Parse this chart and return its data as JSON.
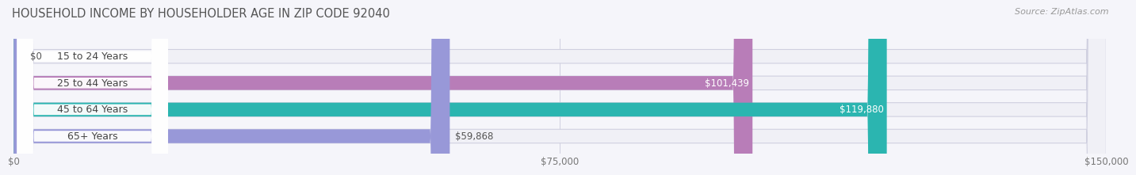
{
  "title": "HOUSEHOLD INCOME BY HOUSEHOLDER AGE IN ZIP CODE 92040",
  "source": "Source: ZipAtlas.com",
  "categories": [
    "15 to 24 Years",
    "25 to 44 Years",
    "45 to 64 Years",
    "65+ Years"
  ],
  "values": [
    0,
    101439,
    119880,
    59868
  ],
  "value_labels": [
    "$0",
    "$101,439",
    "$119,880",
    "$59,868"
  ],
  "value_label_colors": [
    "#555555",
    "#ffffff",
    "#ffffff",
    "#555555"
  ],
  "bar_colors": [
    "#aabce8",
    "#b87db8",
    "#2bb5b0",
    "#9898d8"
  ],
  "track_edge_color": "#d0d0e0",
  "track_face_color": "#f0f0f6",
  "xlim": [
    0,
    150000
  ],
  "xtick_values": [
    0,
    75000,
    150000
  ],
  "xtick_labels": [
    "$0",
    "$75,000",
    "$150,000"
  ],
  "background_color": "#f5f5fa",
  "title_fontsize": 10.5,
  "source_fontsize": 8,
  "label_fontsize": 9,
  "value_fontsize": 8.5,
  "bar_height": 0.52,
  "label_box_color": "#ffffff",
  "grid_color": "#d0d0e0"
}
